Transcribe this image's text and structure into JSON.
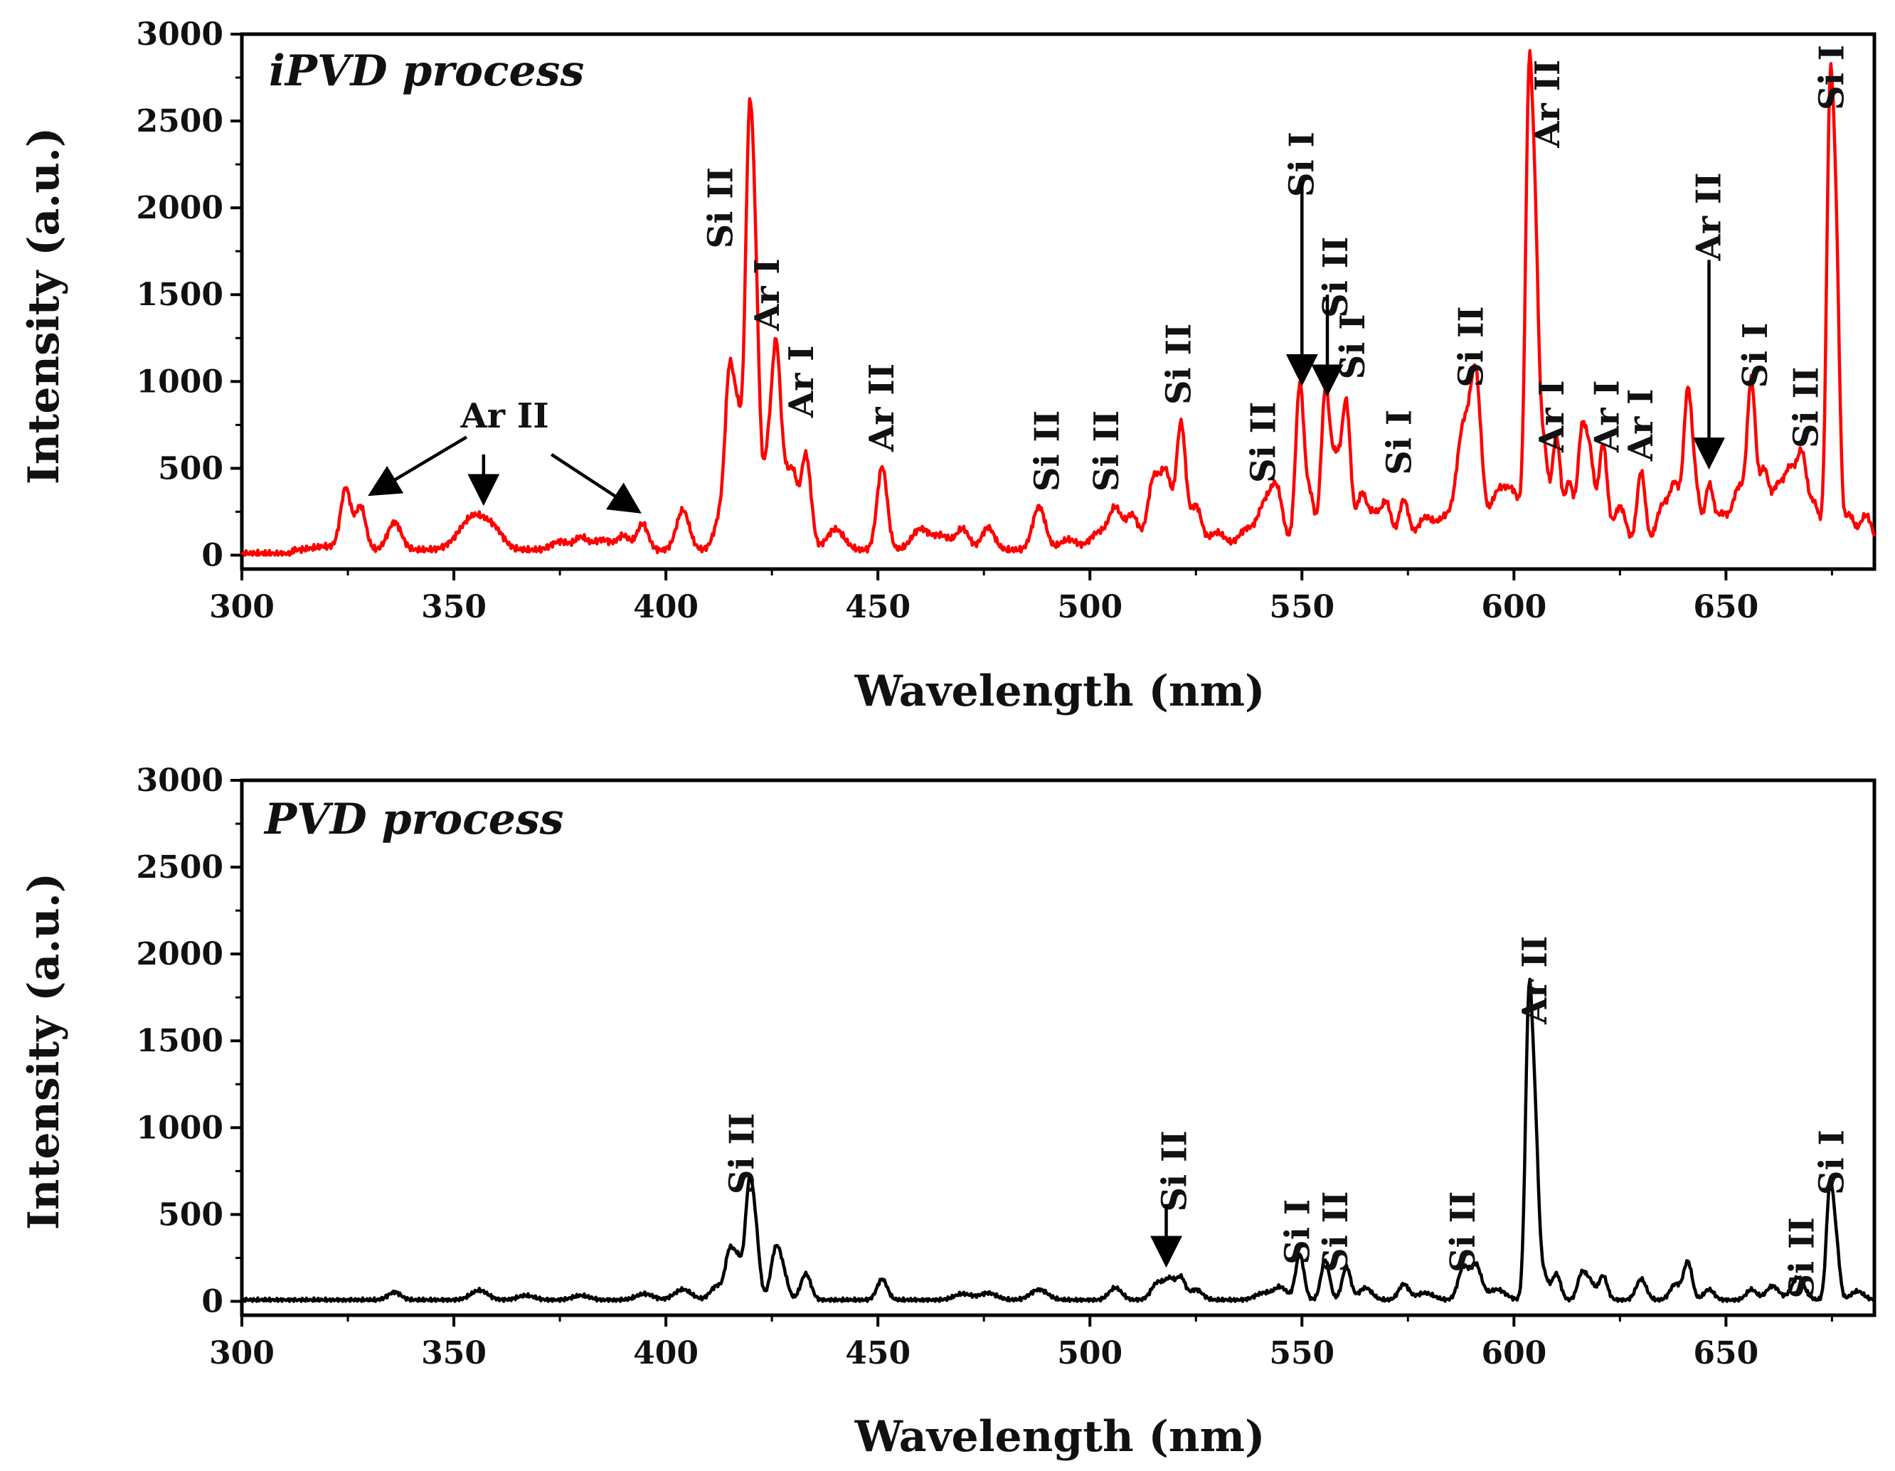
{
  "chart_data": [
    {
      "type": "line",
      "panel_label": "iPVD process",
      "line_color": "#ff0000",
      "xlabel": "Wavelength (nm)",
      "ylabel": "Intensity (a.u.)",
      "xlim": [
        300,
        685
      ],
      "ylim": [
        -80,
        3000
      ],
      "xticks": [
        300,
        350,
        400,
        450,
        500,
        550,
        600,
        650
      ],
      "yticks": [
        0,
        500,
        1000,
        1500,
        2000,
        2500,
        3000
      ],
      "baseline": 30,
      "peaks": [
        [
          320,
          20,
          3
        ],
        [
          324.5,
          350,
          1.2
        ],
        [
          328,
          250,
          1.2
        ],
        [
          336,
          160,
          1.6
        ],
        [
          355,
          200,
          3.5
        ],
        [
          360,
          60,
          2
        ],
        [
          375,
          50,
          2
        ],
        [
          380,
          70,
          1.5
        ],
        [
          385,
          60,
          2
        ],
        [
          390,
          80,
          1.5
        ],
        [
          394.5,
          150,
          1.3
        ],
        [
          404,
          230,
          1.5
        ],
        [
          413,
          200,
          1.5
        ],
        [
          415,
          900,
          1.0
        ],
        [
          417,
          700,
          1.0
        ],
        [
          419.5,
          1950,
          0.9
        ],
        [
          421,
          1500,
          1.0
        ],
        [
          424,
          500,
          1.0
        ],
        [
          426,
          1100,
          1.0
        ],
        [
          428,
          350,
          1.0
        ],
        [
          430,
          400,
          1.0
        ],
        [
          433,
          550,
          1.2
        ],
        [
          440,
          120,
          2
        ],
        [
          451,
          480,
          1.2
        ],
        [
          460,
          120,
          2
        ],
        [
          465,
          80,
          2
        ],
        [
          470,
          120,
          1.5
        ],
        [
          476,
          130,
          1.5
        ],
        [
          488,
          250,
          1.5
        ],
        [
          495,
          60,
          2
        ],
        [
          502,
          100,
          2
        ],
        [
          506,
          230,
          1.5
        ],
        [
          510,
          200,
          1.5
        ],
        [
          515,
          400,
          1.4
        ],
        [
          518,
          420,
          1.3
        ],
        [
          521.5,
          720,
          1.1
        ],
        [
          525,
          250,
          1.3
        ],
        [
          530,
          100,
          2
        ],
        [
          537,
          120,
          2
        ],
        [
          541,
          220,
          1.5
        ],
        [
          544,
          350,
          1.5
        ],
        [
          549.5,
          950,
          1.0
        ],
        [
          552,
          300,
          1.0
        ],
        [
          555.5,
          880,
          1.0
        ],
        [
          558,
          500,
          1.2
        ],
        [
          560.5,
          800,
          1.0
        ],
        [
          564,
          300,
          1.2
        ],
        [
          567,
          200,
          1.5
        ],
        [
          570,
          250,
          1.2
        ],
        [
          574,
          280,
          1.2
        ],
        [
          579,
          180,
          2
        ],
        [
          584,
          180,
          2
        ],
        [
          588,
          650,
          1.5
        ],
        [
          591,
          950,
          1.3
        ],
        [
          596,
          300,
          2
        ],
        [
          600,
          300,
          2
        ],
        [
          603.5,
          2450,
          0.8
        ],
        [
          605,
          1600,
          0.8
        ],
        [
          607,
          600,
          1.0
        ],
        [
          610,
          650,
          1.0
        ],
        [
          613,
          380,
          1.0
        ],
        [
          616,
          650,
          1.0
        ],
        [
          618,
          500,
          1.0
        ],
        [
          621,
          600,
          1.0
        ],
        [
          625,
          250,
          1.5
        ],
        [
          630,
          450,
          1.0
        ],
        [
          635,
          250,
          1.5
        ],
        [
          638,
          350,
          1.2
        ],
        [
          641,
          880,
          1.0
        ],
        [
          643,
          300,
          1.0
        ],
        [
          646,
          350,
          1.0
        ],
        [
          649,
          200,
          1.5
        ],
        [
          653,
          350,
          1.5
        ],
        [
          656,
          920,
          1.0
        ],
        [
          659,
          450,
          1.2
        ],
        [
          662,
          300,
          1.2
        ],
        [
          665,
          450,
          1.5
        ],
        [
          668,
          500,
          1.2
        ],
        [
          671,
          250,
          1.2
        ],
        [
          674.5,
          2430,
          0.8
        ],
        [
          676,
          1600,
          0.8
        ],
        [
          679,
          200,
          1.2
        ],
        [
          683,
          200,
          1.5
        ]
      ],
      "annotations": [
        {
          "text": "Ar II",
          "x": 362,
          "y": 800,
          "rotate": false
        },
        {
          "text": "Si II",
          "x": 413,
          "y": 2000,
          "rotate": true
        },
        {
          "text": "Ar I",
          "x": 424,
          "y": 1500,
          "rotate": true
        },
        {
          "text": "Ar I",
          "x": 432,
          "y": 1000,
          "rotate": true
        },
        {
          "text": "Ar II",
          "x": 451,
          "y": 850,
          "rotate": true
        },
        {
          "text": "Si II",
          "x": 490,
          "y": 600,
          "rotate": true
        },
        {
          "text": "Si II",
          "x": 504,
          "y": 600,
          "rotate": true
        },
        {
          "text": "Si II",
          "x": 521,
          "y": 1100,
          "rotate": true
        },
        {
          "text": "Si II",
          "x": 541,
          "y": 650,
          "rotate": true
        },
        {
          "text": "Si I",
          "x": 550,
          "y": 2250,
          "rotate": true
        },
        {
          "text": "Si II",
          "x": 558,
          "y": 1600,
          "rotate": true
        },
        {
          "text": "Si I",
          "x": 562,
          "y": 1200,
          "rotate": true
        },
        {
          "text": "Si I",
          "x": 573,
          "y": 650,
          "rotate": true
        },
        {
          "text": "Si II",
          "x": 590,
          "y": 1200,
          "rotate": true
        },
        {
          "text": "Ar II",
          "x": 608,
          "y": 2600,
          "rotate": true
        },
        {
          "text": "Ar I",
          "x": 609,
          "y": 800,
          "rotate": true
        },
        {
          "text": "Ar I",
          "x": 622,
          "y": 800,
          "rotate": true
        },
        {
          "text": "Ar I",
          "x": 630,
          "y": 750,
          "rotate": true
        },
        {
          "text": "Ar II",
          "x": 646,
          "y": 1950,
          "rotate": true
        },
        {
          "text": "Si I",
          "x": 657,
          "y": 1150,
          "rotate": true
        },
        {
          "text": "Si II",
          "x": 669,
          "y": 850,
          "rotate": true
        },
        {
          "text": "Si I",
          "x": 675,
          "y": 2750,
          "rotate": true
        }
      ],
      "arrows": [
        {
          "from": [
            353,
            680
          ],
          "to": [
            331,
            360
          ]
        },
        {
          "from": [
            357,
            580
          ],
          "to": [
            357,
            320
          ]
        },
        {
          "from": [
            373,
            580
          ],
          "to": [
            393,
            260
          ]
        },
        {
          "from": [
            550,
            2150
          ],
          "to": [
            550,
            1010
          ]
        },
        {
          "from": [
            556,
            1500
          ],
          "to": [
            556,
            950
          ]
        },
        {
          "from": [
            646,
            1700
          ],
          "to": [
            646,
            530
          ]
        }
      ]
    },
    {
      "type": "line",
      "panel_label": "PVD process",
      "line_color": "#000000",
      "xlabel": "Wavelength (nm)",
      "ylabel": "Intensity (a.u.)",
      "xlim": [
        300,
        685
      ],
      "ylim": [
        -80,
        3000
      ],
      "xticks": [
        300,
        350,
        400,
        450,
        500,
        550,
        600,
        650
      ],
      "yticks": [
        0,
        500,
        1000,
        1500,
        2000,
        2500,
        3000
      ],
      "baseline": 8,
      "peaks": [
        [
          336,
          45,
          1.5
        ],
        [
          356,
          55,
          2
        ],
        [
          367,
          25,
          2
        ],
        [
          380,
          25,
          2
        ],
        [
          395,
          35,
          2
        ],
        [
          404,
          60,
          2
        ],
        [
          412,
          80,
          1.5
        ],
        [
          415,
          260,
          1.0
        ],
        [
          417,
          220,
          1.0
        ],
        [
          419.5,
          540,
          0.9
        ],
        [
          421,
          400,
          1.0
        ],
        [
          426,
          300,
          1.2
        ],
        [
          428,
          100,
          1.0
        ],
        [
          433,
          150,
          1.2
        ],
        [
          451,
          120,
          1.2
        ],
        [
          470,
          35,
          2
        ],
        [
          476,
          40,
          2
        ],
        [
          488,
          60,
          2
        ],
        [
          506,
          70,
          1.5
        ],
        [
          516,
          100,
          1.5
        ],
        [
          519,
          110,
          1.2
        ],
        [
          521.5,
          120,
          1.0
        ],
        [
          525,
          60,
          1.5
        ],
        [
          541,
          40,
          2
        ],
        [
          545,
          70,
          1.5
        ],
        [
          549.5,
          260,
          1.0
        ],
        [
          555.5,
          230,
          1.0
        ],
        [
          560.5,
          190,
          1.0
        ],
        [
          565,
          70,
          1.5
        ],
        [
          574,
          90,
          1.2
        ],
        [
          579,
          40,
          2
        ],
        [
          588,
          180,
          1.2
        ],
        [
          591,
          200,
          1.3
        ],
        [
          596,
          60,
          2
        ],
        [
          603.5,
          1650,
          0.8
        ],
        [
          605,
          900,
          0.8
        ],
        [
          607,
          150,
          1.0
        ],
        [
          610,
          150,
          1.0
        ],
        [
          616,
          150,
          1.0
        ],
        [
          618,
          100,
          1.0
        ],
        [
          621,
          140,
          1.0
        ],
        [
          630,
          120,
          1.2
        ],
        [
          638,
          90,
          1.2
        ],
        [
          641,
          220,
          1.0
        ],
        [
          646,
          60,
          1.2
        ],
        [
          656,
          60,
          1.2
        ],
        [
          661,
          80,
          1.5
        ],
        [
          667,
          130,
          1.5
        ],
        [
          674.5,
          640,
          0.8
        ],
        [
          676,
          300,
          0.8
        ],
        [
          681,
          50,
          1.5
        ]
      ],
      "annotations": [
        {
          "text": "Si II",
          "x": 418,
          "y": 850,
          "rotate": true
        },
        {
          "text": "Si II",
          "x": 520,
          "y": 750,
          "rotate": true
        },
        {
          "text": "Si I",
          "x": 549,
          "y": 400,
          "rotate": true
        },
        {
          "text": "Si II",
          "x": 558,
          "y": 400,
          "rotate": true
        },
        {
          "text": "Si II",
          "x": 588,
          "y": 400,
          "rotate": true
        },
        {
          "text": "Ar II",
          "x": 605,
          "y": 1850,
          "rotate": true
        },
        {
          "text": "Si II",
          "x": 668,
          "y": 250,
          "rotate": true
        },
        {
          "text": "Si I",
          "x": 675,
          "y": 800,
          "rotate": true
        }
      ],
      "arrows": [
        {
          "from": [
            518,
            560
          ],
          "to": [
            518,
            230
          ]
        }
      ]
    }
  ]
}
